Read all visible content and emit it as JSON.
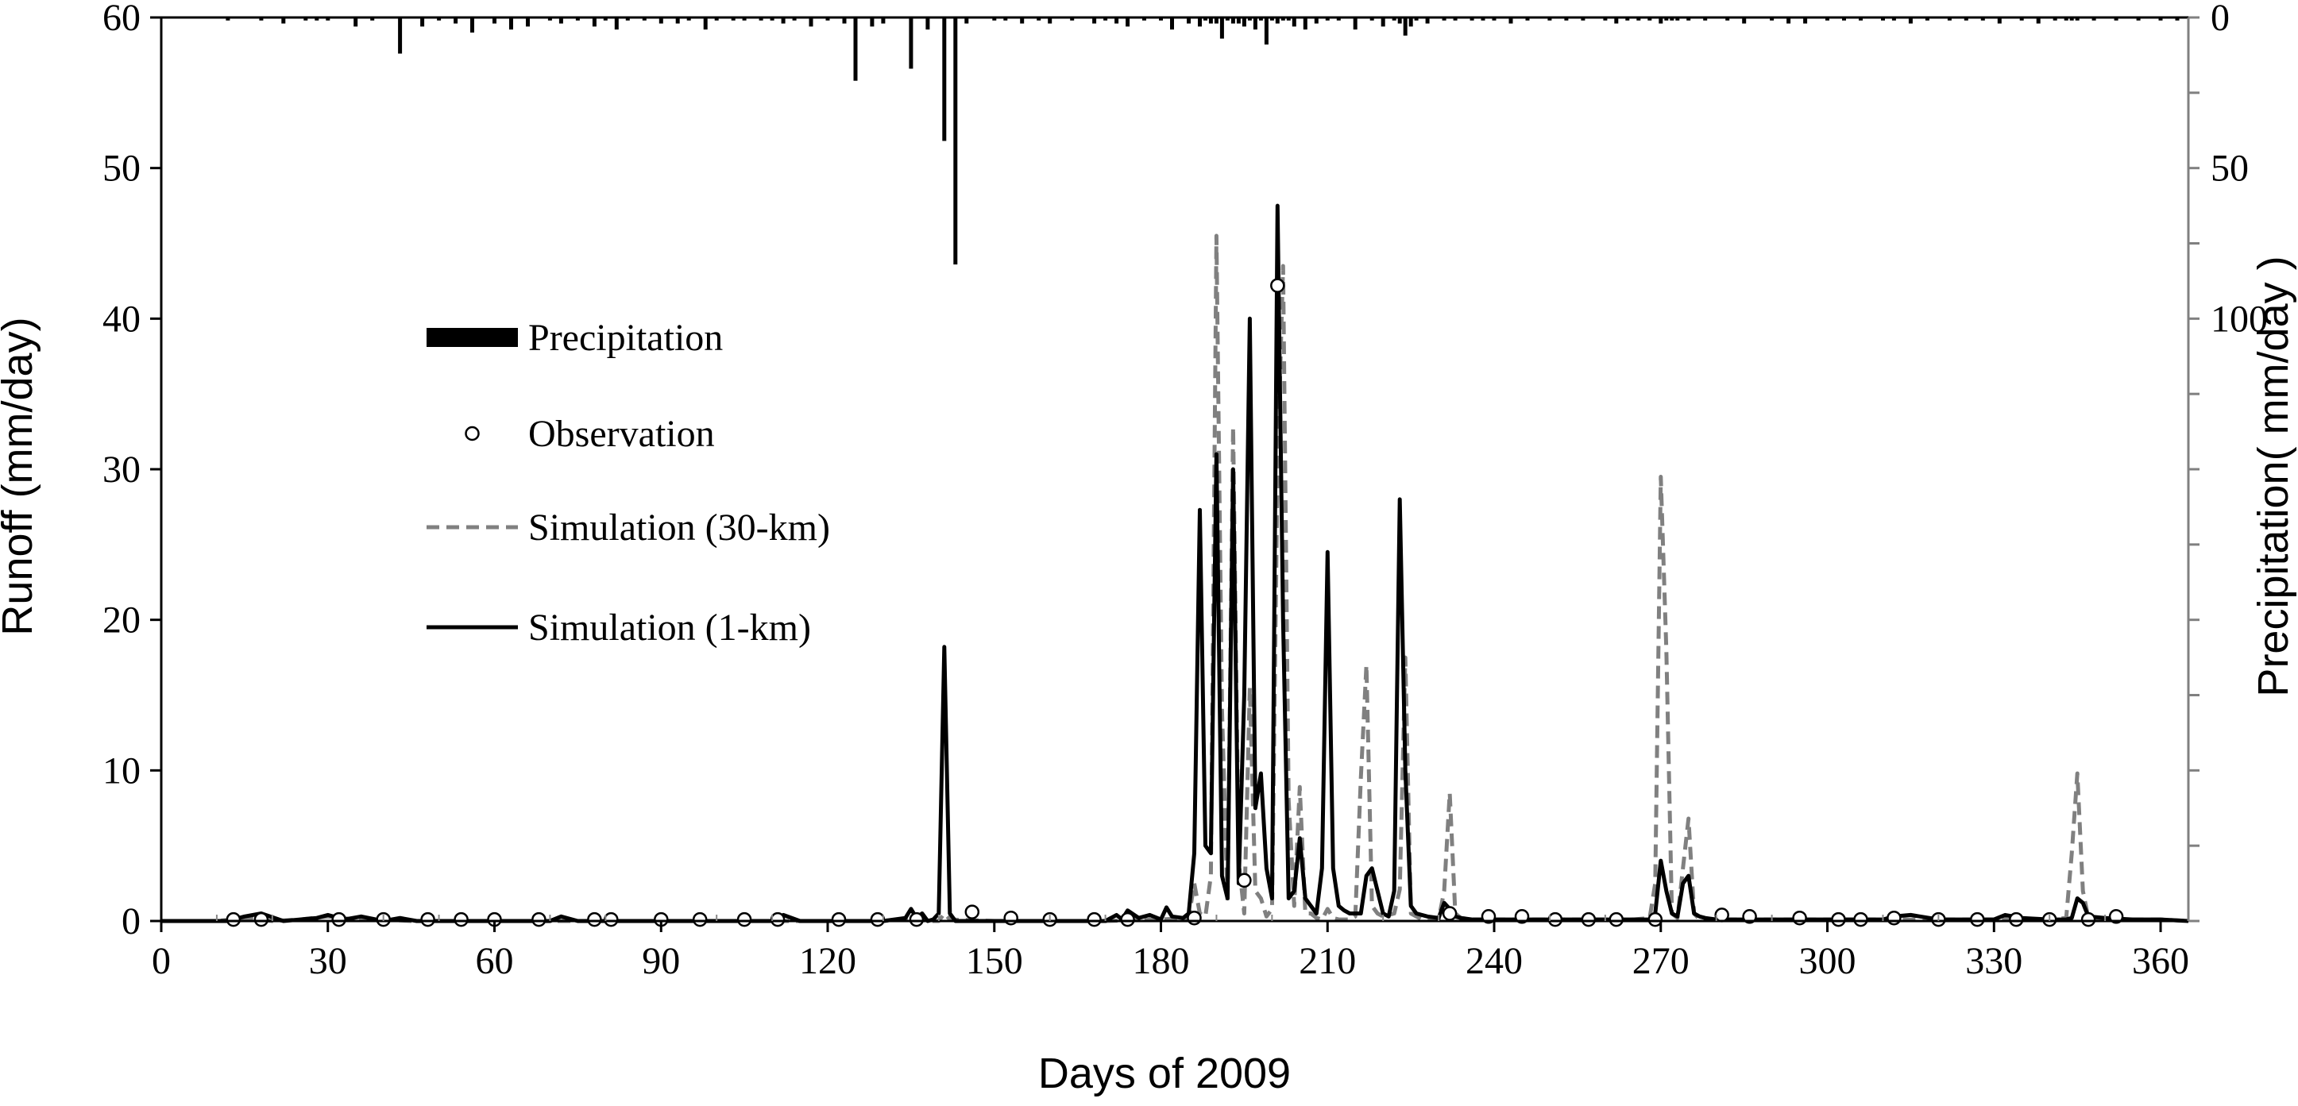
{
  "chart_data": {
    "type": "line",
    "title": "",
    "xlabel": "Days of 2009",
    "ylabel_left": "Runoff (mm/day)",
    "ylabel_right": "Precipitation( mm/day )",
    "xlim": [
      0,
      365
    ],
    "ylim_left": [
      0,
      60
    ],
    "ylim_right": [
      0,
      300
    ],
    "right_axis_inverted": true,
    "x_ticks": [
      0,
      30,
      60,
      90,
      120,
      150,
      180,
      210,
      240,
      270,
      300,
      330,
      360
    ],
    "x_tick_labels": [
      "0",
      "30",
      "60",
      "90",
      "120",
      "150",
      "180",
      "210",
      "240",
      "270",
      "300",
      "330",
      "360"
    ],
    "y_left_ticks": [
      0,
      10,
      20,
      30,
      40,
      50,
      60
    ],
    "y_left_tick_labels": [
      "0",
      "10",
      "20",
      "30",
      "40",
      "50",
      "60"
    ],
    "y_right_ticks": [
      0,
      50,
      100
    ],
    "y_right_tick_labels": [
      "0",
      "50",
      "100"
    ],
    "legend": {
      "placement": "center-left",
      "entries": [
        {
          "name": "Precipitation",
          "kind": "bar",
          "color": "#000000"
        },
        {
          "name": "Observation",
          "kind": "marker",
          "color": "#000000"
        },
        {
          "name": "Simulation (30-km)",
          "kind": "dashed",
          "color": "#808080"
        },
        {
          "name": "Simulation (1-km)",
          "kind": "solid",
          "color": "#000000"
        }
      ]
    },
    "series": [
      {
        "name": "Precipitation",
        "axis": "right",
        "color": "#000000",
        "x": [
          12,
          18,
          22,
          26,
          28,
          30,
          35,
          38,
          43,
          47,
          50,
          53,
          56,
          60,
          63,
          66,
          70,
          72,
          75,
          78,
          80,
          82,
          84,
          87,
          90,
          93,
          95,
          98,
          100,
          103,
          105,
          108,
          110,
          112,
          114,
          117,
          120,
          123,
          125,
          128,
          130,
          135,
          138,
          141,
          143,
          145,
          150,
          152,
          155,
          158,
          160,
          164,
          168,
          170,
          172,
          174,
          177,
          180,
          182,
          185,
          187,
          188,
          189,
          190,
          191,
          192,
          193,
          194,
          195,
          196,
          197,
          198,
          199,
          200,
          201,
          202,
          203,
          204,
          206,
          208,
          210,
          212,
          215,
          218,
          220,
          222,
          223,
          224,
          225,
          226,
          228,
          231,
          233,
          236,
          238,
          240,
          243,
          246,
          250,
          253,
          256,
          260,
          262,
          264,
          266,
          268,
          270,
          271,
          272,
          273,
          275,
          278,
          282,
          285,
          290,
          293,
          296,
          300,
          303,
          306,
          310,
          312,
          315,
          318,
          322,
          325,
          328,
          331,
          335,
          338,
          341,
          343,
          344,
          345,
          348,
          352,
          356,
          360,
          363
        ],
        "values": [
          1,
          1,
          2,
          1,
          1,
          1,
          3,
          1,
          12,
          3,
          1,
          2,
          5,
          2,
          4,
          3,
          1,
          2,
          1,
          3,
          1,
          4,
          1,
          1,
          2,
          2,
          1,
          4,
          1,
          1,
          1,
          1,
          1,
          2,
          1,
          3,
          1,
          2,
          21,
          3,
          2,
          17,
          4,
          41,
          82,
          2,
          1,
          1,
          2,
          1,
          2,
          1,
          2,
          1,
          2,
          3,
          1,
          1,
          4,
          2,
          3,
          1,
          2,
          2,
          7,
          1,
          2,
          2,
          3,
          1,
          4,
          1,
          9,
          1,
          2,
          1,
          1,
          3,
          4,
          2,
          1,
          1,
          4,
          1,
          3,
          1,
          2,
          6,
          3,
          1,
          2,
          1,
          1,
          1,
          1,
          1,
          2,
          1,
          1,
          1,
          1,
          1,
          2,
          1,
          1,
          1,
          2,
          1,
          1,
          1,
          1,
          1,
          1,
          2,
          1,
          2,
          2,
          1,
          1,
          1,
          1,
          1,
          2,
          1,
          1,
          1,
          1,
          2,
          1,
          2,
          1,
          1,
          1,
          1,
          1,
          1,
          1,
          1,
          1
        ]
      },
      {
        "name": "Observation",
        "axis": "left",
        "color": "#000000",
        "x": [
          13,
          18,
          32,
          40,
          48,
          54,
          60,
          68,
          78,
          81,
          90,
          97,
          105,
          111,
          122,
          129,
          136,
          146,
          153,
          160,
          168,
          174,
          186,
          195,
          201,
          232,
          239,
          245,
          251,
          257,
          262,
          269,
          281,
          286,
          295,
          302,
          306,
          312,
          320,
          327,
          334,
          340,
          347,
          352
        ],
        "values": [
          0.1,
          0.1,
          0.1,
          0.1,
          0.1,
          0.1,
          0.1,
          0.1,
          0.1,
          0.1,
          0.1,
          0.1,
          0.1,
          0.1,
          0.1,
          0.1,
          0.1,
          0.6,
          0.2,
          0.1,
          0.1,
          0.1,
          0.2,
          2.7,
          42.2,
          0.5,
          0.3,
          0.3,
          0.1,
          0.1,
          0.1,
          0.1,
          0.4,
          0.3,
          0.2,
          0.1,
          0.1,
          0.2,
          0.1,
          0.1,
          0.1,
          0.1,
          0.1,
          0.3
        ]
      },
      {
        "name": "Simulation (30-km)",
        "axis": "left",
        "color": "#808080",
        "dashed": true,
        "x": [
          0,
          5,
          10,
          15,
          20,
          25,
          30,
          35,
          40,
          45,
          50,
          60,
          70,
          80,
          90,
          100,
          110,
          120,
          130,
          135,
          136,
          137,
          138,
          140,
          141,
          142,
          150,
          160,
          170,
          180,
          185,
          186,
          187,
          188,
          189,
          190,
          191,
          192,
          193,
          194,
          195,
          196,
          197,
          198,
          199,
          200,
          201,
          202,
          203,
          204,
          205,
          206,
          207,
          208,
          209,
          210,
          211,
          212,
          214,
          215,
          216,
          217,
          218,
          219,
          220,
          222,
          223,
          224,
          225,
          226,
          227,
          228,
          230,
          231,
          232,
          233,
          234,
          236,
          240,
          250,
          260,
          265,
          268,
          269,
          270,
          271,
          272,
          273,
          274,
          275,
          276,
          277,
          280,
          290,
          300,
          310,
          320,
          330,
          340,
          343,
          344,
          345,
          346,
          347,
          350,
          360,
          365
        ],
        "values": [
          0,
          0,
          0,
          0.2,
          0,
          0.1,
          0.3,
          0.1,
          0.1,
          0,
          0,
          0,
          0,
          0,
          0,
          0,
          0,
          0,
          0,
          0.2,
          0.4,
          0.2,
          0,
          0,
          0.5,
          0.1,
          0,
          0,
          0,
          0.1,
          0.2,
          2.5,
          0.5,
          0.3,
          3.0,
          45.5,
          14.0,
          1.2,
          32.8,
          4.0,
          0.5,
          15.5,
          2.0,
          1.5,
          0.3,
          0.8,
          30.0,
          43.5,
          8.0,
          1.0,
          8.9,
          0.5,
          0.5,
          0.2,
          0.1,
          0.8,
          0.2,
          0.1,
          0.1,
          0.3,
          9.5,
          17.0,
          1.0,
          0.5,
          0.3,
          0.5,
          2.1,
          17.5,
          0.5,
          0.3,
          0.1,
          0.1,
          0.1,
          2.0,
          8.5,
          0.5,
          0.2,
          0.1,
          0.1,
          0.1,
          0.1,
          0.1,
          0.2,
          2.5,
          29.5,
          18.0,
          0.5,
          0.2,
          3.5,
          6.8,
          0.5,
          0.1,
          0.1,
          0.1,
          0.1,
          0.1,
          0.1,
          0.1,
          0.1,
          0.2,
          4.5,
          9.8,
          2.0,
          0.2,
          0.1,
          0.1,
          0
        ]
      },
      {
        "name": "Simulation (1-km)",
        "axis": "left",
        "color": "#000000",
        "dashed": false,
        "x": [
          0,
          5,
          8,
          12,
          15,
          18,
          22,
          25,
          28,
          30,
          33,
          36,
          40,
          43,
          46,
          50,
          55,
          60,
          65,
          70,
          72,
          75,
          80,
          90,
          100,
          110,
          112,
          115,
          120,
          130,
          134,
          135,
          136,
          137,
          138,
          139,
          140,
          141,
          142,
          143,
          144,
          150,
          160,
          170,
          172,
          173,
          174,
          176,
          178,
          180,
          181,
          182,
          184,
          185,
          186,
          187,
          188,
          189,
          190,
          191,
          192,
          193,
          194,
          195,
          196,
          197,
          198,
          199,
          200,
          201,
          202,
          203,
          204,
          205,
          206,
          207,
          208,
          209,
          210,
          211,
          212,
          213,
          214,
          216,
          217,
          218,
          219,
          220,
          221,
          222,
          223,
          224,
          225,
          226,
          227,
          228,
          230,
          231,
          232,
          233,
          234,
          236,
          240,
          250,
          260,
          265,
          268,
          269,
          270,
          271,
          272,
          273,
          274,
          275,
          276,
          277,
          278,
          280,
          290,
          300,
          310,
          312,
          315,
          320,
          330,
          332,
          335,
          340,
          343,
          344,
          345,
          346,
          347,
          350,
          355,
          360,
          365
        ],
        "values": [
          0,
          0,
          0,
          0,
          0.3,
          0.5,
          0,
          0.1,
          0.2,
          0.4,
          0.1,
          0.3,
          0,
          0.2,
          0,
          0,
          0,
          0,
          0,
          0,
          0.3,
          0,
          0,
          0,
          0,
          0,
          0.4,
          0,
          0,
          0,
          0.2,
          0.8,
          0.2,
          0.5,
          0,
          0.1,
          0.5,
          18.2,
          0.5,
          0,
          0,
          0,
          0,
          0,
          0.4,
          0.1,
          0.7,
          0.2,
          0.4,
          0.1,
          0.9,
          0.3,
          0.2,
          0.5,
          4.5,
          27.3,
          5.0,
          4.5,
          31.0,
          3.0,
          1.5,
          30.0,
          2.5,
          15.0,
          40.0,
          7.5,
          9.8,
          3.5,
          1.5,
          47.5,
          20.0,
          1.5,
          2.0,
          5.5,
          1.5,
          1.0,
          0.5,
          3.5,
          24.5,
          3.5,
          1.0,
          0.7,
          0.5,
          0.5,
          3.0,
          3.5,
          2.0,
          0.5,
          0.3,
          2.0,
          28.0,
          10.0,
          1.0,
          0.5,
          0.4,
          0.3,
          0.2,
          1.2,
          0.8,
          0.3,
          0.2,
          0.1,
          0.1,
          0.1,
          0.1,
          0.1,
          0.1,
          0.5,
          4.0,
          2.0,
          0.5,
          0.3,
          2.5,
          3.0,
          0.5,
          0.3,
          0.2,
          0.1,
          0.1,
          0.1,
          0.1,
          0.3,
          0.4,
          0.1,
          0.1,
          0.4,
          0.2,
          0.1,
          0.1,
          0.2,
          1.5,
          1.2,
          0.3,
          0.2,
          0.1,
          0.1,
          0
        ]
      }
    ]
  }
}
